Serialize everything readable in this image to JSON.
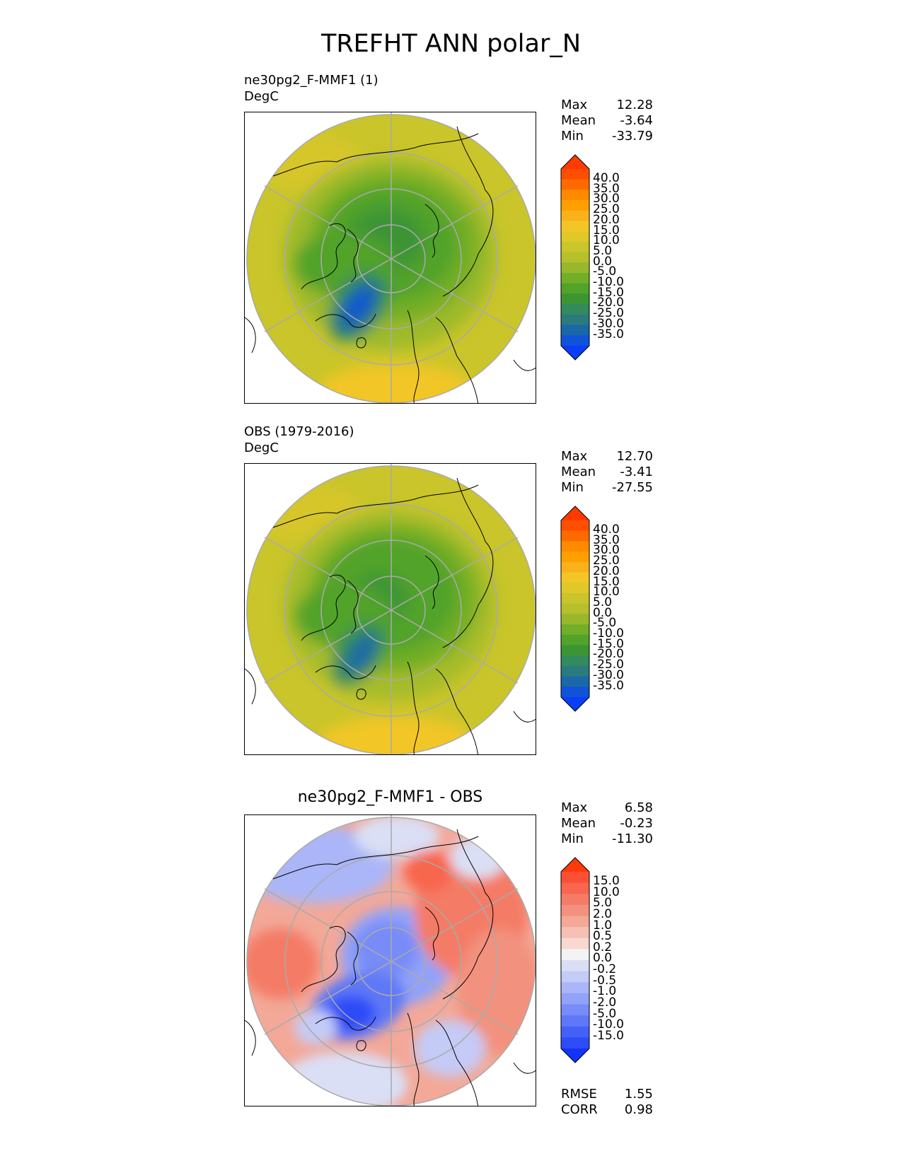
{
  "figure": {
    "title": "TREFHT ANN polar_N"
  },
  "panels": [
    {
      "id": "test",
      "title_line1": "ne30pg2_F-MMF1 (1)",
      "title_line2": "DegC",
      "stats": {
        "max_label": "Max",
        "max": "12.28",
        "mean_label": "Mean",
        "mean": "-3.64",
        "min_label": "Min",
        "min": "-33.79"
      },
      "colorbar_ticks": [
        "40.0",
        "35.0",
        "30.0",
        "25.0",
        "20.0",
        "15.0",
        "10.0",
        "5.0",
        "0.0",
        "-5.0",
        "-10.0",
        "-15.0",
        "-20.0",
        "-25.0",
        "-30.0",
        "-35.0"
      ],
      "colorbar_colors": [
        "#ff3a00",
        "#ff4e00",
        "#ff6a00",
        "#ff8a00",
        "#ffa000",
        "#f9b21a",
        "#f2c626",
        "#e0c82a",
        "#c9c52a",
        "#b6c02a",
        "#98b82c",
        "#72ae28",
        "#51a32a",
        "#3c9435",
        "#328a5e",
        "#2a7a7e",
        "#1a68a8",
        "#1052d8",
        "#0a3ef8"
      ]
    },
    {
      "id": "reference",
      "title_line1": "OBS (1979-2016)",
      "title_line2": "DegC",
      "stats": {
        "max_label": "Max",
        "max": "12.70",
        "mean_label": "Mean",
        "mean": "-3.41",
        "min_label": "Min",
        "min": "-27.55"
      },
      "colorbar_ticks": [
        "40.0",
        "35.0",
        "30.0",
        "25.0",
        "20.0",
        "15.0",
        "10.0",
        "5.0",
        "0.0",
        "-5.0",
        "-10.0",
        "-15.0",
        "-20.0",
        "-25.0",
        "-30.0",
        "-35.0"
      ],
      "colorbar_colors": [
        "#ff3a00",
        "#ff4e00",
        "#ff6a00",
        "#ff8a00",
        "#ffa000",
        "#f9b21a",
        "#f2c626",
        "#e0c82a",
        "#c9c52a",
        "#b6c02a",
        "#98b82c",
        "#72ae28",
        "#51a32a",
        "#3c9435",
        "#328a5e",
        "#2a7a7e",
        "#1a68a8",
        "#1052d8",
        "#0a3ef8"
      ]
    },
    {
      "id": "difference",
      "title_center": "ne30pg2_F-MMF1 - OBS",
      "stats": {
        "max_label": "Max",
        "max": "6.58",
        "mean_label": "Mean",
        "mean": "-0.23",
        "min_label": "Min",
        "min": "-11.30"
      },
      "colorbar_ticks": [
        "15.0",
        "10.0",
        "5.0",
        "2.0",
        "1.0",
        "0.5",
        "0.2",
        "0.0",
        "-0.2",
        "-0.5",
        "-1.0",
        "-2.0",
        "-5.0",
        "-10.0",
        "-15.0"
      ],
      "colorbar_colors": [
        "#ff3a0a",
        "#fb5036",
        "#f7664e",
        "#f47c66",
        "#f2927e",
        "#f3a898",
        "#f6c0b4",
        "#f9d8d0",
        "#f3f3f5",
        "#dadff5",
        "#c4cbf6",
        "#aab6f7",
        "#92a2f8",
        "#788cf8",
        "#5e78f7",
        "#4460f6",
        "#2e4cf8",
        "#1234f8"
      ],
      "error_stats": {
        "rmse_label": "RMSE",
        "rmse": "1.55",
        "corr_label": "CORR",
        "corr": "0.98"
      }
    }
  ]
}
